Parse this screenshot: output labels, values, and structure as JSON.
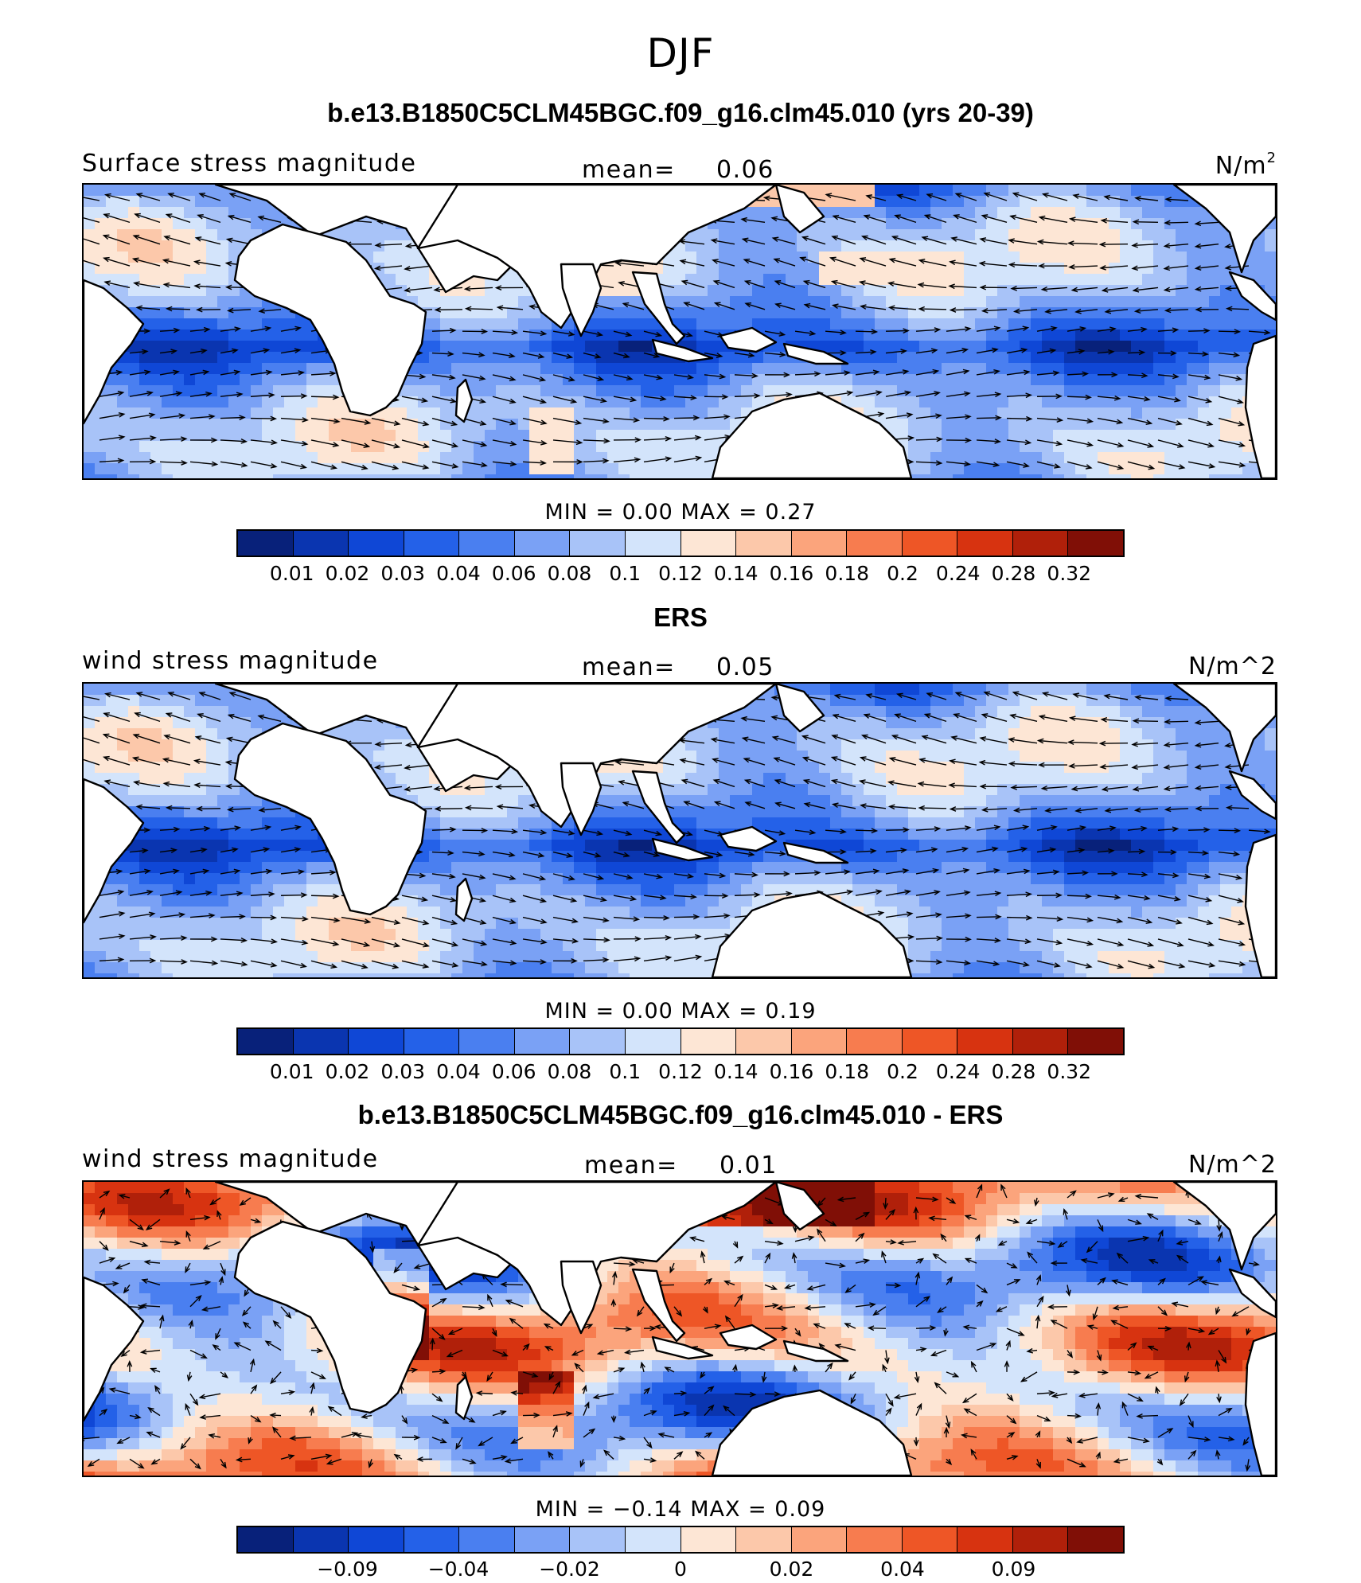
{
  "title": "DJF",
  "colors": {
    "scale": [
      "#08217a",
      "#0a35b0",
      "#0f47d6",
      "#2461e8",
      "#4a7ff0",
      "#7aa1f5",
      "#a8c3f8",
      "#d3e4fb",
      "#fde6d5",
      "#fcc8aa",
      "#fba47c",
      "#f77c4f",
      "#ee5626",
      "#d73310",
      "#b0200a",
      "#800f06"
    ],
    "land": "#ffffff",
    "arrow": "#000000"
  },
  "panels": [
    {
      "title": "b.e13.B1850C5CLM45BGC.f09_g16.clm45.010 (yrs 20-39)",
      "left_label": "Surface stress magnitude",
      "mean_label": "mean=",
      "mean_value": "0.06",
      "units_base": "N/m",
      "units_sup": "2",
      "stats": "MIN =     0.00  MAX =     0.27",
      "kind": "abs",
      "colorbar_labels": [
        "0.01",
        "0.02",
        "0.03",
        "0.04",
        "0.06",
        "0.08",
        "0.1",
        "0.12",
        "0.14",
        "0.16",
        "0.18",
        "0.2",
        "0.24",
        "0.28",
        "0.32"
      ]
    },
    {
      "title": "ERS",
      "left_label": "wind stress magnitude",
      "mean_label": "mean=",
      "mean_value": "0.05",
      "units_base": "N/m^2",
      "units_sup": "",
      "stats": "MIN =     0.00  MAX =     0.19",
      "kind": "obs",
      "colorbar_labels": [
        "0.01",
        "0.02",
        "0.03",
        "0.04",
        "0.06",
        "0.08",
        "0.1",
        "0.12",
        "0.14",
        "0.16",
        "0.18",
        "0.2",
        "0.24",
        "0.28",
        "0.32"
      ]
    },
    {
      "title": "b.e13.B1850C5CLM45BGC.f09_g16.clm45.010 - ERS",
      "left_label": "wind stress magnitude",
      "mean_label": "mean=",
      "mean_value": "0.01",
      "units_base": "N/m^2",
      "units_sup": "",
      "stats": "MIN =   −0.14  MAX =     0.09",
      "kind": "diff",
      "colorbar_labels": [
        "−0.09",
        "−0.04",
        "−0.02",
        "0",
        "0.02",
        "0.04",
        "0.09"
      ]
    }
  ]
}
